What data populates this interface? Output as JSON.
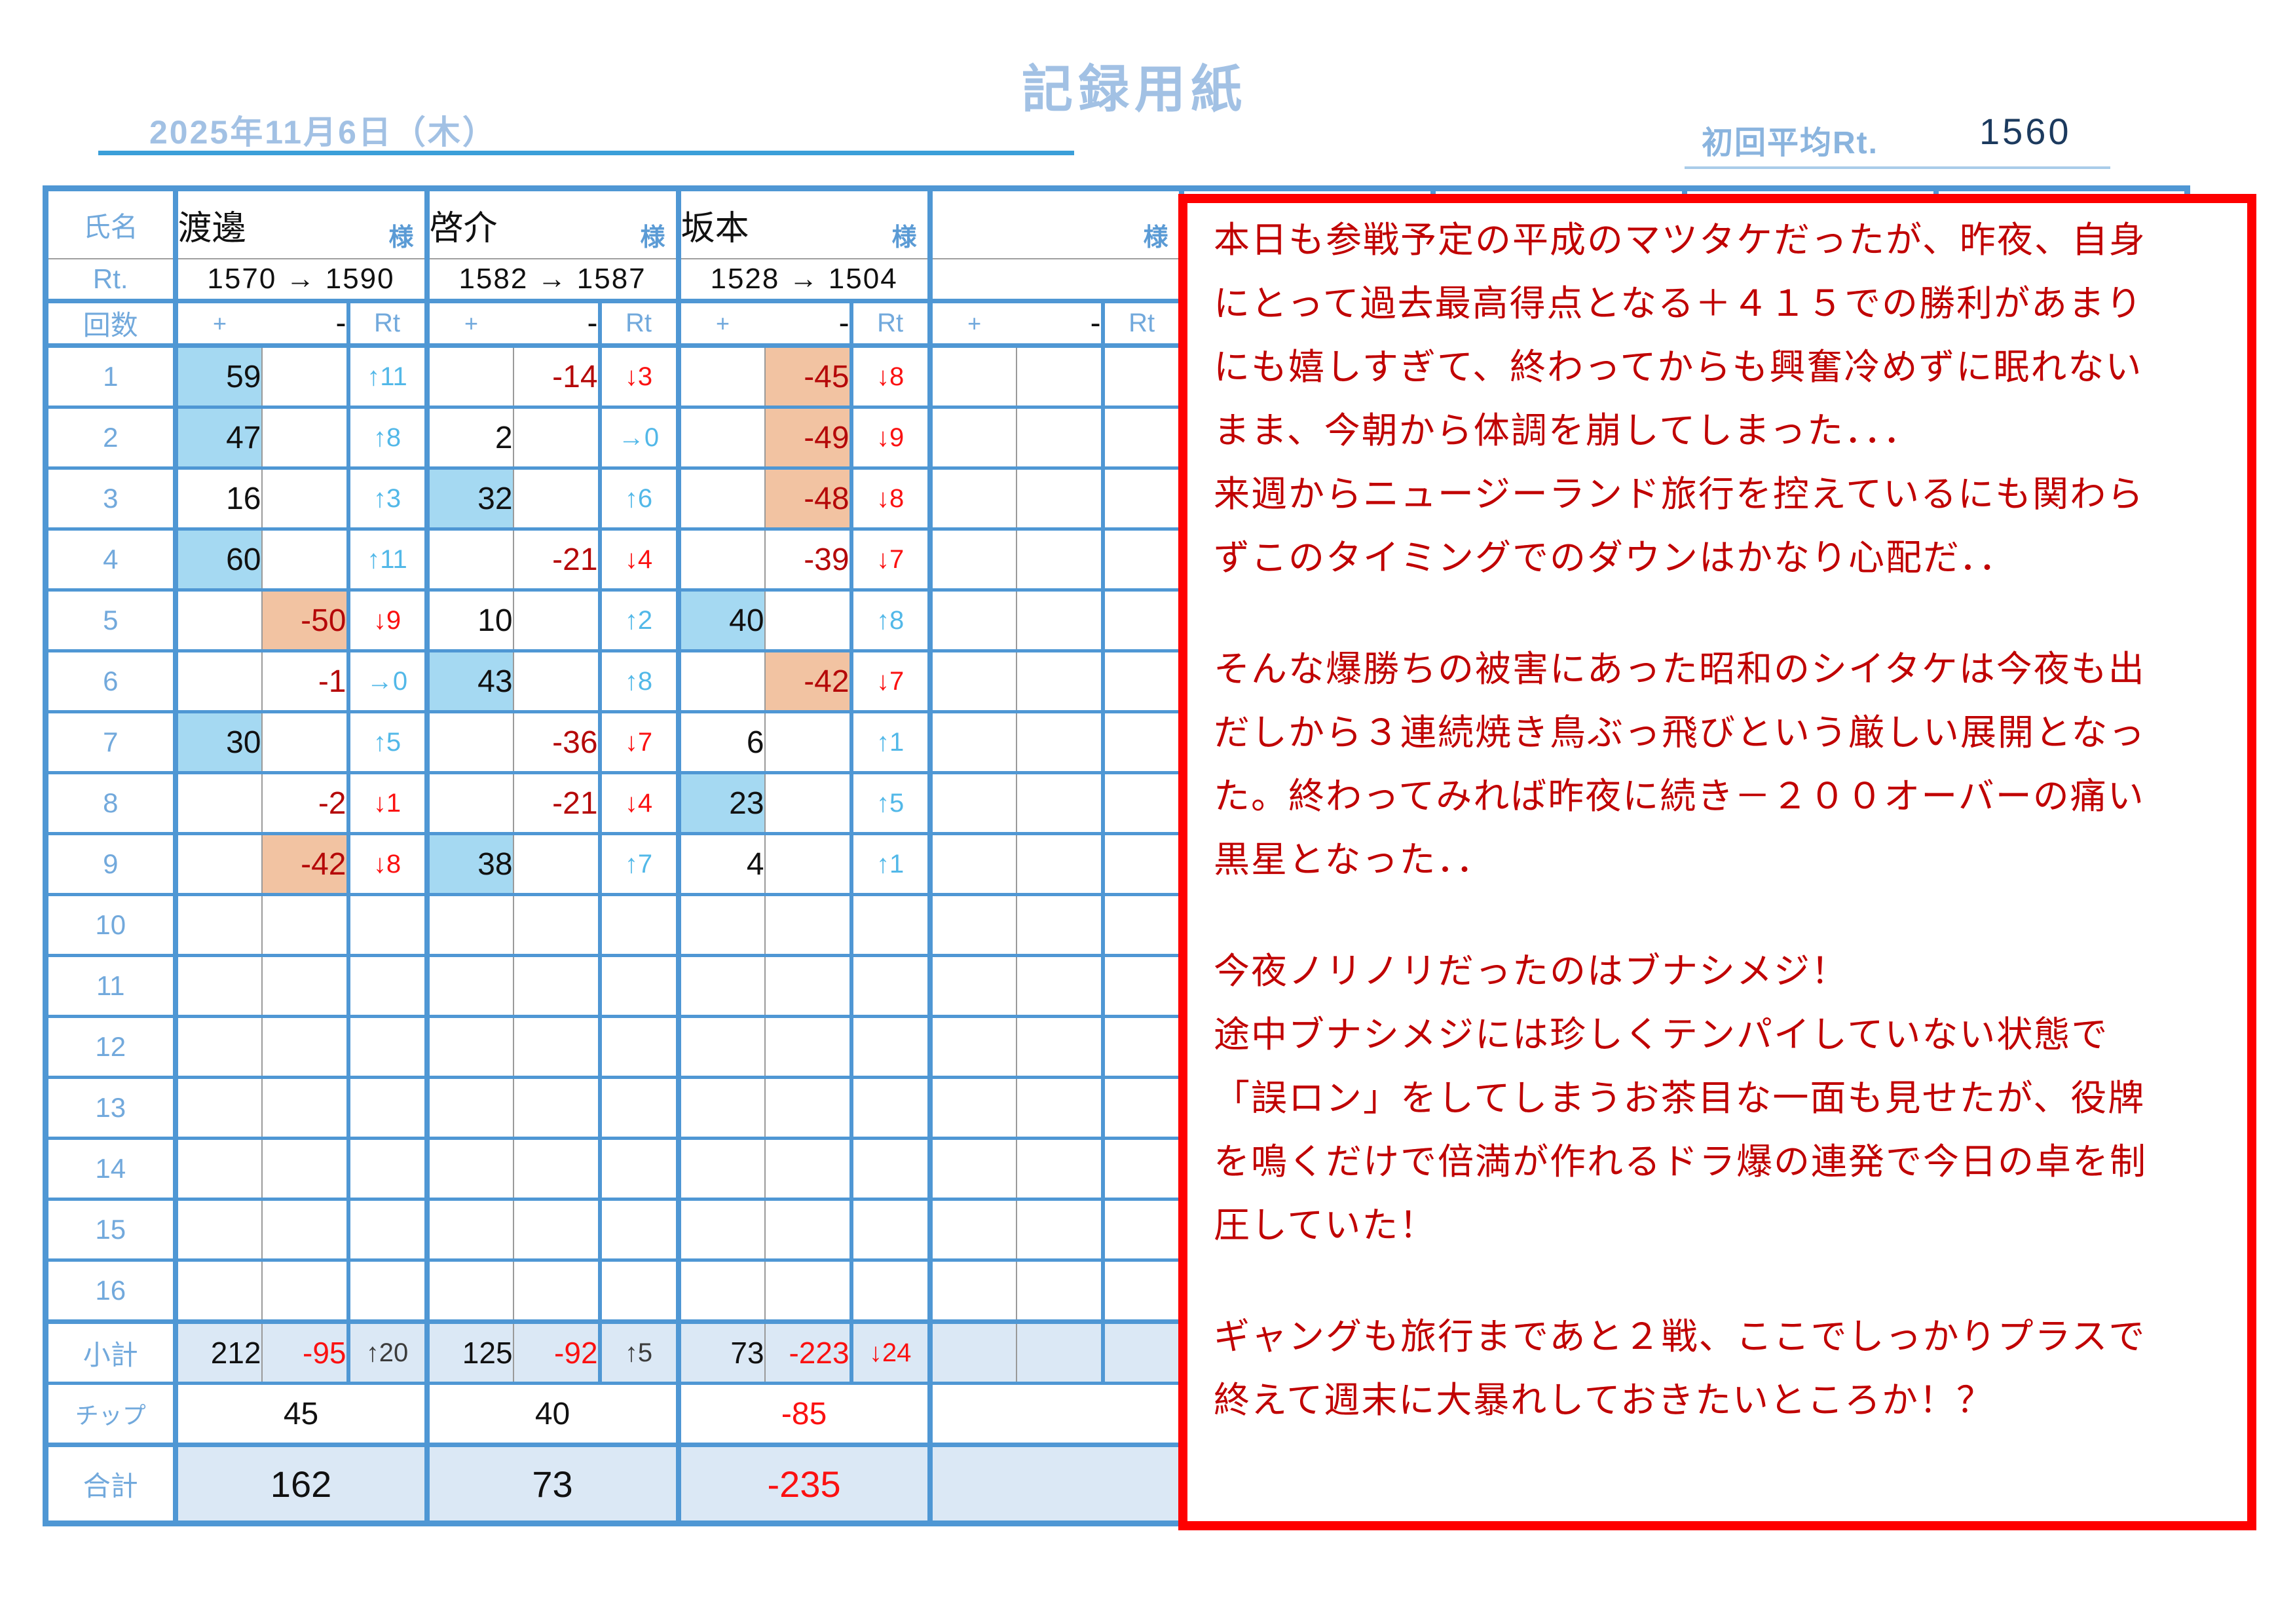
{
  "colors": {
    "border_blue": "#4f97d4",
    "label_blue": "#72a9dc",
    "sama_blue": "#5b9bd5",
    "up_blue": "#52b8e8",
    "down_red": "#fb1111",
    "neg_dark_red": "#b50909",
    "highlight_blue": "#a5d9f2",
    "highlight_salmon": "#f2c3a2",
    "band_fill": "#dbe8f5",
    "note_border": "#fe0000",
    "note_text": "#c00000",
    "heading_blue": "#a2c1e4",
    "avg_label_blue": "#8ab4de",
    "value_navy": "#1c3a5e",
    "date_line": "#3b9fd9"
  },
  "header": {
    "title": "記録用紙",
    "date": "2025年11月6日（木）",
    "avg_label": "初回平均Rt.",
    "avg_value": "1560"
  },
  "table": {
    "labels": {
      "name": "氏名",
      "rt": "Rt.",
      "kaisu": "回数",
      "plus": "+",
      "minus": "-",
      "rtcol": "Rt",
      "sama": "様",
      "subtotal": "小計",
      "chip": "チップ",
      "total": "合計"
    },
    "row_count": 16,
    "players": [
      {
        "name": "渡邊",
        "rt_change": "1570 → 1590",
        "games": [
          {
            "row": 1,
            "plus": "59",
            "minus": "",
            "hl": "plus-blue",
            "rt": "↑11",
            "rt_dir": "up"
          },
          {
            "row": 2,
            "plus": "47",
            "minus": "",
            "hl": "plus-blue",
            "rt": "↑8",
            "rt_dir": "up"
          },
          {
            "row": 3,
            "plus": "16",
            "minus": "",
            "hl": "",
            "rt": "↑3",
            "rt_dir": "up"
          },
          {
            "row": 4,
            "plus": "60",
            "minus": "",
            "hl": "plus-blue",
            "rt": "↑11",
            "rt_dir": "up"
          },
          {
            "row": 5,
            "plus": "",
            "minus": "-50",
            "hl": "minus-salmon",
            "rt": "↓9",
            "rt_dir": "down"
          },
          {
            "row": 6,
            "plus": "",
            "minus": "-1",
            "hl": "",
            "rt": "→0",
            "rt_dir": "flat"
          },
          {
            "row": 7,
            "plus": "30",
            "minus": "",
            "hl": "plus-blue",
            "rt": "↑5",
            "rt_dir": "up"
          },
          {
            "row": 8,
            "plus": "",
            "minus": "-2",
            "hl": "",
            "rt": "↓1",
            "rt_dir": "down"
          },
          {
            "row": 9,
            "plus": "",
            "minus": "-42",
            "hl": "minus-salmon",
            "rt": "↓8",
            "rt_dir": "down"
          }
        ],
        "subtotal": {
          "plus": "212",
          "minus": "-95",
          "rt": "↑20",
          "rt_dir": "up"
        },
        "chip": "45",
        "total": "162"
      },
      {
        "name": "啓介",
        "rt_change": "1582 → 1587",
        "games": [
          {
            "row": 1,
            "plus": "",
            "minus": "-14",
            "hl": "",
            "rt": "↓3",
            "rt_dir": "down"
          },
          {
            "row": 2,
            "plus": "2",
            "minus": "",
            "hl": "",
            "rt": "→0",
            "rt_dir": "flat"
          },
          {
            "row": 3,
            "plus": "32",
            "minus": "",
            "hl": "plus-blue",
            "rt": "↑6",
            "rt_dir": "up"
          },
          {
            "row": 4,
            "plus": "",
            "minus": "-21",
            "hl": "",
            "rt": "↓4",
            "rt_dir": "down"
          },
          {
            "row": 5,
            "plus": "10",
            "minus": "",
            "hl": "",
            "rt": "↑2",
            "rt_dir": "up"
          },
          {
            "row": 6,
            "plus": "43",
            "minus": "",
            "hl": "plus-blue",
            "rt": "↑8",
            "rt_dir": "up"
          },
          {
            "row": 7,
            "plus": "",
            "minus": "-36",
            "hl": "",
            "rt": "↓7",
            "rt_dir": "down"
          },
          {
            "row": 8,
            "plus": "",
            "minus": "-21",
            "hl": "",
            "rt": "↓4",
            "rt_dir": "down"
          },
          {
            "row": 9,
            "plus": "38",
            "minus": "",
            "hl": "plus-blue",
            "rt": "↑7",
            "rt_dir": "up"
          }
        ],
        "subtotal": {
          "plus": "125",
          "minus": "-92",
          "rt": "↑5",
          "rt_dir": "up"
        },
        "chip": "40",
        "total": "73"
      },
      {
        "name": "坂本",
        "rt_change": "1528 → 1504",
        "games": [
          {
            "row": 1,
            "plus": "",
            "minus": "-45",
            "hl": "minus-salmon",
            "rt": "↓8",
            "rt_dir": "down"
          },
          {
            "row": 2,
            "plus": "",
            "minus": "-49",
            "hl": "minus-salmon",
            "rt": "↓9",
            "rt_dir": "down"
          },
          {
            "row": 3,
            "plus": "",
            "minus": "-48",
            "hl": "minus-salmon",
            "rt": "↓8",
            "rt_dir": "down"
          },
          {
            "row": 4,
            "plus": "",
            "minus": "-39",
            "hl": "",
            "rt": "↓7",
            "rt_dir": "down"
          },
          {
            "row": 5,
            "plus": "40",
            "minus": "",
            "hl": "plus-blue",
            "rt": "↑8",
            "rt_dir": "up"
          },
          {
            "row": 6,
            "plus": "",
            "minus": "-42",
            "hl": "minus-salmon",
            "rt": "↓7",
            "rt_dir": "down"
          },
          {
            "row": 7,
            "plus": "6",
            "minus": "",
            "hl": "",
            "rt": "↑1",
            "rt_dir": "up"
          },
          {
            "row": 8,
            "plus": "23",
            "minus": "",
            "hl": "plus-blue",
            "rt": "↑5",
            "rt_dir": "up"
          },
          {
            "row": 9,
            "plus": "4",
            "minus": "",
            "hl": "",
            "rt": "↑1",
            "rt_dir": "up"
          }
        ],
        "subtotal": {
          "plus": "73",
          "minus": "-223",
          "rt": "↓24",
          "rt_dir": "down"
        },
        "chip": "-85",
        "total": "-235"
      },
      {
        "name": "",
        "rt_change": "",
        "games": [],
        "subtotal": {
          "plus": "",
          "minus": "",
          "rt": "",
          "rt_dir": ""
        },
        "chip": "",
        "total": ""
      },
      {
        "name": "",
        "rt_change": "",
        "games": [],
        "subtotal": {
          "plus": "",
          "minus": "",
          "rt": "",
          "rt_dir": ""
        },
        "chip": "",
        "total": ""
      },
      {
        "name": "",
        "rt_change": "",
        "games": [],
        "subtotal": {
          "plus": "",
          "minus": "",
          "rt": "",
          "rt_dir": ""
        },
        "chip": "",
        "total": ""
      },
      {
        "name": "",
        "rt_change": "",
        "games": [],
        "subtotal": {
          "plus": "",
          "minus": "",
          "rt": "",
          "rt_dir": ""
        },
        "chip": "",
        "total": ""
      },
      {
        "name": "",
        "rt_change": "",
        "games": [],
        "subtotal": {
          "plus": "",
          "minus": "",
          "rt": "",
          "rt_dir": ""
        },
        "chip": "",
        "total": ""
      }
    ]
  },
  "note": {
    "lines": [
      "本日も参戦予定の平成のマツタケだったが、昨夜、自身",
      "にとって過去最高得点となる＋４１５での勝利があまり",
      "にも嬉しすぎて、終わってからも興奮冷めずに眠れない",
      "まま、今朝から体調を崩してしまった．．．",
      "来週からニュージーランド旅行を控えているにも関わら",
      "ずこのタイミングでのダウンはかなり心配だ．．",
      "",
      "そんな爆勝ちの被害にあった昭和のシイタケは今夜も出",
      "だしから３連続焼き鳥ぶっ飛びという厳しい展開となっ",
      "た。終わってみれば昨夜に続き－２００オーバーの痛い",
      "黒星となった．．",
      "",
      "今夜ノリノリだったのはブナシメジ！",
      "途中ブナシメジには珍しくテンパイしていない状態で",
      "「誤ロン」をしてしまうお茶目な一面も見せたが、役牌",
      "を鳴くだけで倍満が作れるドラ爆の連発で今日の卓を制",
      "圧していた！",
      "",
      "ギャングも旅行まであと２戦、ここでしっかりプラスで",
      "終えて週末に大暴れしておきたいところか！？"
    ]
  }
}
